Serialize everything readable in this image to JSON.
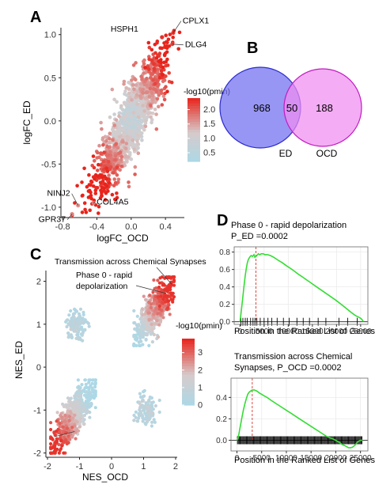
{
  "panels": {
    "a": "A",
    "b": "B",
    "c": "C",
    "d": "D"
  },
  "chart_data": [
    {
      "panel": "A",
      "type": "scatter",
      "xlabel": "logFC_OCD",
      "ylabel": "logFC_ED",
      "xlim": [
        -0.82,
        0.62
      ],
      "ylim": [
        -1.12,
        1.08
      ],
      "xticks": [
        -0.8,
        -0.4,
        0.0,
        0.4
      ],
      "xtick_labels": [
        "-0.8",
        "-0.4",
        "0.0",
        "0.4"
      ],
      "yticks": [
        -1.0,
        -0.5,
        0.0,
        0.5,
        1.0
      ],
      "ytick_labels": [
        "-1.0",
        "-0.5",
        "0.0",
        "0.5",
        "1.0"
      ],
      "legend_title": "-log10(pmin)",
      "legend_ticks": [
        0.5,
        1.0,
        1.5,
        2.0
      ],
      "legend_tick_labels": [
        "0.5",
        "1.0",
        "1.5",
        "2.0"
      ],
      "color_range": [
        0.2,
        2.4
      ],
      "color_low": "#add8e6",
      "color_mid": "#d6cbcb",
      "color_high": "#e8231b",
      "labeled_points": [
        {
          "label": "HSPH1",
          "x": 0.36,
          "y": 0.97,
          "c": 2.3
        },
        {
          "label": "CPLX1",
          "x": 0.49,
          "y": 1.02,
          "c": 2.3
        },
        {
          "label": "DLG4",
          "x": 0.48,
          "y": 0.89,
          "c": 2.2
        },
        {
          "label": "NINJ2",
          "x": -0.62,
          "y": -0.98,
          "c": 1.6
        },
        {
          "label": "COL4A5",
          "x": -0.44,
          "y": -0.95,
          "c": 1.8
        },
        {
          "label": "GPR37",
          "x": -0.69,
          "y": -1.08,
          "c": 1.7
        }
      ]
    },
    {
      "panel": "B",
      "type": "venn",
      "sets": [
        {
          "name": "ED",
          "only": 968,
          "color": "#6f6ef0",
          "edge": "#2b2bd0"
        },
        {
          "name": "OCD",
          "only": 188,
          "color": "#f08cf0",
          "edge": "#c21bc2"
        }
      ],
      "intersection": 50,
      "overlap_color": "#c25ce6"
    },
    {
      "panel": "C",
      "type": "scatter",
      "xlabel": "NES_OCD",
      "ylabel": "NES_ED",
      "xlim": [
        -2.05,
        2.05
      ],
      "ylim": [
        -2.1,
        2.25
      ],
      "xticks": [
        -2,
        -1,
        0,
        1,
        2
      ],
      "xtick_labels": [
        "-2",
        "-1",
        "0",
        "1",
        "2"
      ],
      "yticks": [
        -2,
        -1,
        0,
        1,
        2
      ],
      "ytick_labels": [
        "-2",
        "-1",
        "0",
        "1",
        "2"
      ],
      "legend_title": "-log10(pmin)",
      "legend_ticks": [
        0,
        1,
        2,
        3
      ],
      "legend_tick_labels": [
        "0",
        "1",
        "2",
        "3"
      ],
      "color_range": [
        0,
        3.8
      ],
      "color_low": "#add8e6",
      "color_mid": "#d6cbcb",
      "color_high": "#e8231b",
      "clusters": [
        {
          "quadrant": "upper-left",
          "x_range": [
            -1.5,
            -0.7
          ],
          "y_range": [
            0.55,
            1.35
          ],
          "n": 120,
          "c_range": [
            0,
            1.5
          ]
        },
        {
          "quadrant": "upper-right",
          "x_range": [
            0.7,
            1.95
          ],
          "y_range": [
            0.5,
            2.1
          ],
          "n": 600,
          "c_range": [
            0,
            3.6
          ]
        },
        {
          "quadrant": "lower-left",
          "x_range": [
            -1.9,
            -0.5
          ],
          "y_range": [
            -2.0,
            -0.3
          ],
          "n": 600,
          "c_range": [
            0,
            3.6
          ]
        },
        {
          "quadrant": "lower-right",
          "x_range": [
            0.7,
            1.5
          ],
          "y_range": [
            -1.45,
            -0.55
          ],
          "n": 120,
          "c_range": [
            0,
            1.5
          ]
        }
      ],
      "annotations": [
        {
          "text": "Transmission across Chemical Synapses",
          "x": 1.88,
          "y": 1.93
        },
        {
          "text": "Phase 0 - rapid",
          "x": 1.7,
          "y": 1.72
        },
        {
          "text": "depolarization",
          "x": 1.7,
          "y": 1.72
        }
      ]
    },
    {
      "panel": "D",
      "type": "line",
      "subplots": [
        {
          "title_lines": [
            "Phase 0 - rapid depolarization",
            "P_ED =0.0002"
          ],
          "xlabel": "Position in the Ranked List of Genes",
          "xlim": [
            -1200,
            26500
          ],
          "ylim": [
            -0.03,
            0.86
          ],
          "xticks": [
            0,
            5000,
            10000,
            15000,
            20000,
            25000
          ],
          "xtick_labels": [
            "0",
            "5000",
            "10000",
            "15000",
            "20000",
            "25000"
          ],
          "yticks": [
            0.0,
            0.2,
            0.4,
            0.6,
            0.8
          ],
          "ytick_labels": [
            "0.0",
            "0.2",
            "0.4",
            "0.6",
            "0.8"
          ],
          "running_es": {
            "x": [
              0,
              150,
              300,
              500,
              700,
              900,
              1100,
              1300,
              1500,
              1700,
              2000,
              2300,
              2600,
              2900,
              3100,
              3300,
              3500,
              3800,
              4100,
              4400,
              4800,
              5200,
              5700,
              6300,
              7000,
              7800,
              8700,
              9700,
              10800,
              12000,
              13300,
              14600,
              15900,
              17200,
              18500,
              19800,
              21000,
              22100,
              23000,
              23700,
              24300,
              24700,
              25000,
              25200,
              25400,
              25600
            ],
            "y": [
              0.0,
              0.06,
              0.14,
              0.24,
              0.34,
              0.44,
              0.53,
              0.61,
              0.67,
              0.71,
              0.74,
              0.76,
              0.75,
              0.77,
              0.74,
              0.75,
              0.76,
              0.78,
              0.77,
              0.78,
              0.78,
              0.77,
              0.77,
              0.76,
              0.74,
              0.71,
              0.68,
              0.64,
              0.6,
              0.55,
              0.5,
              0.45,
              0.4,
              0.35,
              0.3,
              0.25,
              0.2,
              0.15,
              0.11,
              0.08,
              0.06,
              0.05,
              0.04,
              0.03,
              0.015,
              0.0
            ]
          },
          "peak_x": 3300,
          "hits": [
            200,
            600,
            1100,
            1500,
            2200,
            2700,
            3100,
            3500,
            4200,
            5000,
            5800,
            6600,
            7700,
            9000,
            10200,
            11800,
            13100,
            14400,
            16200,
            17800,
            20500,
            22300,
            24300
          ]
        },
        {
          "title_lines": [
            "Transmission across Chemical",
            "Synapses, P_OCD =0.0002"
          ],
          "xlabel": "Position in the Ranked List of Genes",
          "xlim": [
            -1200,
            26500
          ],
          "ylim": [
            -0.1,
            0.58
          ],
          "xticks": [
            0,
            5000,
            10000,
            15000,
            20000,
            25000
          ],
          "xtick_labels": [
            "0",
            "5000",
            "10000",
            "15000",
            "20000",
            "25000"
          ],
          "yticks": [
            0.0,
            0.2,
            0.4
          ],
          "ytick_labels": [
            "0.0",
            "0.2",
            "0.4"
          ],
          "running_es": {
            "x": [
              0,
              200,
              400,
              600,
              800,
              1000,
              1300,
              1600,
              1900,
              2200,
              2500,
              2800,
              3100,
              3500,
              4000,
              4600,
              5300,
              6100,
              7000,
              8000,
              9000,
              10000,
              11000,
              12000,
              13000,
              14000,
              15000,
              16000,
              17000,
              18000,
              19000,
              20000,
              20700,
              21300,
              21800,
              22200,
              22600,
              23000,
              23400,
              23800,
              24200,
              24600,
              25000,
              25400
            ],
            "y": [
              0.0,
              0.02,
              0.06,
              0.11,
              0.16,
              0.21,
              0.28,
              0.34,
              0.39,
              0.43,
              0.45,
              0.46,
              0.47,
              0.47,
              0.46,
              0.44,
              0.42,
              0.4,
              0.37,
              0.34,
              0.31,
              0.28,
              0.25,
              0.22,
              0.19,
              0.16,
              0.13,
              0.1,
              0.07,
              0.04,
              0.02,
              0.0,
              -0.02,
              -0.04,
              -0.05,
              -0.06,
              -0.07,
              -0.07,
              -0.065,
              -0.05,
              -0.03,
              -0.01,
              0.0,
              0.0
            ]
          },
          "peak_x": 3100,
          "hit_range": [
            100,
            25300
          ],
          "hit_count": 140
        }
      ]
    }
  ]
}
